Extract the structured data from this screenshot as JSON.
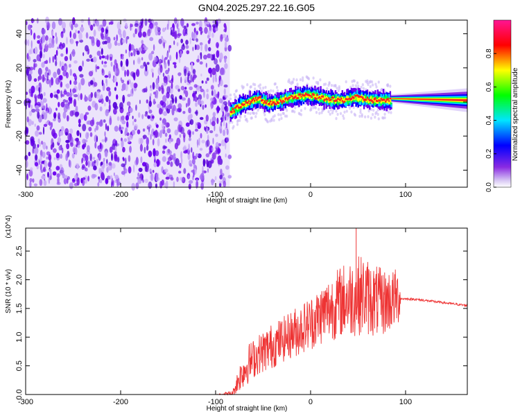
{
  "title": "GN04.2025.297.22.16.G05",
  "chart_data": [
    {
      "type": "heatmap",
      "title": "",
      "xlabel": "Height of straight line (km)",
      "ylabel": "Frequency (Hz)",
      "xlim": [
        -300,
        165
      ],
      "ylim": [
        -50,
        48
      ],
      "xticks": [
        "-300",
        "-200",
        "-100",
        "0",
        "100"
      ],
      "yticks": [
        "-40",
        "-20",
        "0",
        "20",
        "40"
      ],
      "colorbar": {
        "label": "Normalized spectral amplitude",
        "range": [
          0.0,
          1.0
        ],
        "ticks": [
          "0.0",
          "0.2",
          "0.4",
          "0.6",
          "0.8"
        ],
        "colors": [
          "#ffffff",
          "#8a2be2",
          "#0000ff",
          "#00e5ff",
          "#00ff00",
          "#ffff00",
          "#ff0000",
          "#ff1493"
        ]
      },
      "noise_region_x": [
        -300,
        -85
      ],
      "signal_track": {
        "x": [
          -85,
          -75,
          -65,
          -55,
          -45,
          -35,
          -25,
          -15,
          -5,
          5,
          15,
          25,
          35,
          45,
          55,
          65,
          75,
          85,
          100,
          120,
          140,
          165
        ],
        "y": [
          -6,
          -2,
          0,
          2,
          -1,
          0,
          2,
          3,
          4,
          3,
          2,
          1,
          1,
          3,
          2,
          1,
          1,
          1,
          2,
          2,
          1,
          1
        ]
      },
      "grid": false
    },
    {
      "type": "line",
      "title": "",
      "xlabel": "Height of straight line (km)",
      "ylabel": "SNR (10 * v/v)",
      "y_multiplier": "(x10^4)",
      "xlim": [
        -300,
        165
      ],
      "ylim": [
        0,
        2.9
      ],
      "xticks": [
        "-300",
        "-200",
        "-100",
        "0",
        "100"
      ],
      "yticks": [
        "0.0",
        "0.5",
        "1.0",
        "1.5",
        "2.0",
        "2.5"
      ],
      "grid": false,
      "series": [
        {
          "color": "#ee3333",
          "x": [
            -300,
            -250,
            -200,
            -150,
            -100,
            -82,
            -75,
            -65,
            -55,
            -45,
            -35,
            -25,
            -15,
            -5,
            5,
            15,
            25,
            35,
            45,
            55,
            65,
            75,
            85,
            93,
            95,
            110,
            130,
            150,
            165
          ],
          "y": [
            0.0,
            0.0,
            0.0,
            0.0,
            0.0,
            0.02,
            0.3,
            0.55,
            0.7,
            0.8,
            0.9,
            1.0,
            1.1,
            1.2,
            1.3,
            1.45,
            1.55,
            1.65,
            1.7,
            1.75,
            1.65,
            1.6,
            1.65,
            1.7,
            1.67,
            1.66,
            1.62,
            1.58,
            1.55
          ],
          "spread": [
            0,
            0,
            0,
            0,
            0,
            0.05,
            0.25,
            0.35,
            0.35,
            0.4,
            0.4,
            0.4,
            0.45,
            0.45,
            0.5,
            0.55,
            0.6,
            0.65,
            0.7,
            0.7,
            0.65,
            0.6,
            0.55,
            0.5,
            0.02,
            0.02,
            0.02,
            0.02,
            0.02
          ],
          "peak": {
            "x": 48,
            "y": 2.9
          }
        }
      ]
    }
  ]
}
